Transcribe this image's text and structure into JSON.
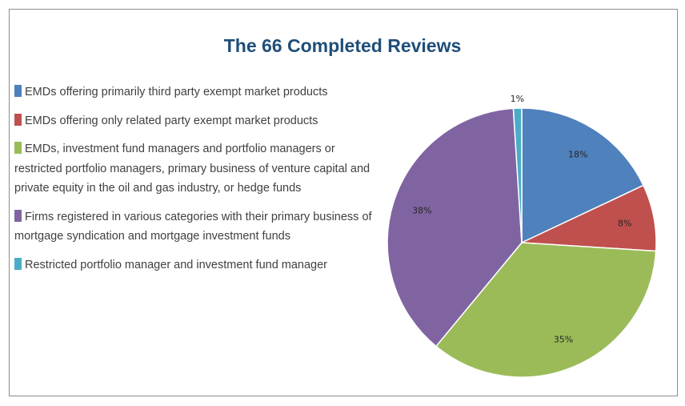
{
  "chart_data": {
    "type": "pie",
    "title": "The 66 Completed Reviews",
    "legend_position": "left",
    "slices": [
      {
        "name": "EMDs offering primarily third party exempt market products",
        "value": 18,
        "label": "18%",
        "color": "#4f81bd"
      },
      {
        "name": "EMDs offering only related party exempt market products",
        "value": 8,
        "label": "8%",
        "color": "#c0504d"
      },
      {
        "name": "EMDs, investment fund managers and portfolio managers or restricted portfolio managers, primary business of venture capital and private equity in the oil and gas industry, or hedge funds",
        "value": 35,
        "label": "35%",
        "color": "#9bbb59"
      },
      {
        "name": "Firms registered in various categories with their primary business of mortgage syndication and mortgage investment funds",
        "value": 38,
        "label": "38%",
        "color": "#8064a2"
      },
      {
        "name": "Restricted portfolio manager and investment fund manager",
        "value": 1,
        "label": "1%",
        "color": "#4bacc6"
      }
    ]
  }
}
